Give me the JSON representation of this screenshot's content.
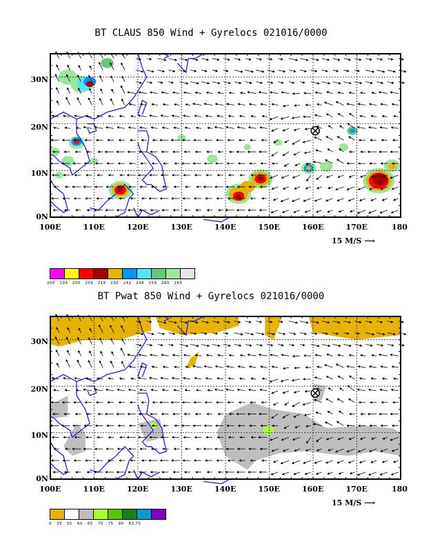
{
  "panel1": {
    "title": "BT CLAUS 850 Wind + Gyrelocs 021016/0000",
    "lat_labels": [
      "30N",
      "20N",
      "10N",
      "0N"
    ],
    "lon_labels": [
      "100E",
      "110E",
      "120E",
      "130E",
      "140E",
      "150E",
      "160E",
      "170E",
      "180"
    ],
    "scale_label": "15 M/S",
    "colorbar_colors": [
      "#ff00ff",
      "#ffff00",
      "#ff0000",
      "#a00000",
      "#e6b400",
      "#0096ff",
      "#50e6ff",
      "#64c87a",
      "#9ae69a",
      "#e6e6e6"
    ],
    "colorbar_labels": "200 194 200 206 218 230 242 248 254 260 265"
  },
  "panel2": {
    "title": "BT Pwat 850 Wind + Gyrelocs 021016/0000",
    "lat_labels": [
      "30N",
      "20N",
      "10N",
      "0N"
    ],
    "lon_labels": [
      "100E",
      "110E",
      "120E",
      "130E",
      "140E",
      "150E",
      "160E",
      "170E",
      "180"
    ],
    "scale_label": "15 M/S",
    "colorbar_colors": [
      "#e6b400",
      "#ffffff",
      "#bebebe",
      "#aaff2a",
      "#50c800",
      "#148214",
      "#0a96d2",
      "#8200c8"
    ],
    "colorbar_labels": "0  35  55  60  65  70  75  80 62.75"
  },
  "gyre_marker": {
    "lon": 160.5,
    "lat": 18.5,
    "symbol": "circled-x"
  },
  "colors": {
    "coast": "#1e1ee6",
    "frame": "#000000",
    "grid": "#000000"
  }
}
